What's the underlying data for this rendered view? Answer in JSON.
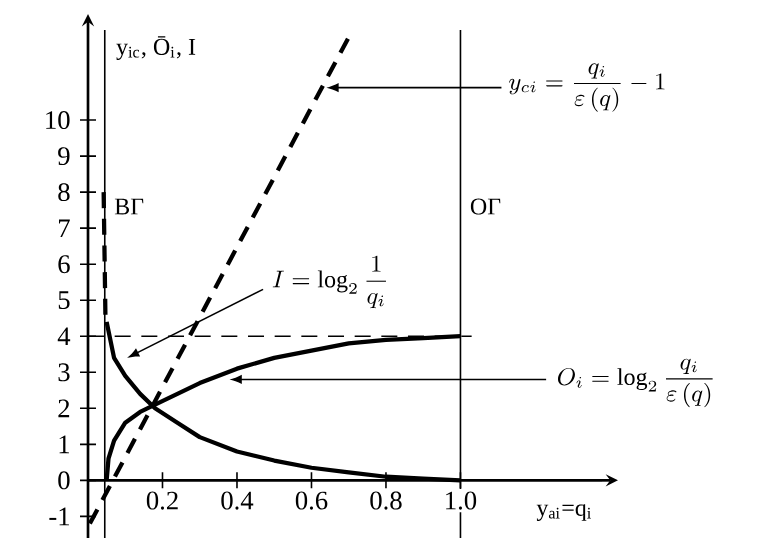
{
  "chart_data": {
    "type": "line",
    "xlabel": "y$_{ai}$=q$_{i}$",
    "ylabel": "y$_{ic}$, Ō$_{i}$, I",
    "xlim": [
      0,
      1.38
    ],
    "ylim": [
      -1.6,
      12.5
    ],
    "xticks": [
      0.2,
      0.4,
      0.6,
      0.8,
      {
        "value": 1.0,
        "label": "1.0"
      }
    ],
    "yticks": [
      -1,
      0,
      1,
      2,
      3,
      4,
      5,
      6,
      7,
      8,
      9,
      10
    ],
    "grid": false,
    "marker": "none",
    "series": [
      {
        "color": "#000000",
        "line_style": "solid",
        "x": [
          0.05,
          0.07,
          0.1,
          0.14,
          0.18,
          0.24,
          0.3,
          0.4,
          0.5,
          0.6,
          0.7,
          0.8,
          0.9,
          1.0
        ],
        "values": [
          4.4,
          3.4,
          2.9,
          2.4,
          2.0,
          1.6,
          1.2,
          0.8,
          0.55,
          0.35,
          0.22,
          0.1,
          0.05,
          0.0
        ]
      },
      {
        "color": "#000000",
        "line_style": "solid",
        "x": [
          0.05,
          0.055,
          0.07,
          0.1,
          0.14,
          0.18,
          0.24,
          0.3,
          0.4,
          0.5,
          0.6,
          0.7,
          0.8,
          0.9,
          1.0
        ],
        "values": [
          0.0,
          0.6,
          1.1,
          1.6,
          1.9,
          2.1,
          2.4,
          2.7,
          3.1,
          3.4,
          3.6,
          3.8,
          3.9,
          3.95,
          4.0
        ]
      },
      {
        "color": "#000000",
        "line_style": "dashed",
        "x": [
          0.005,
          0.7
        ],
        "values": [
          -1.2,
          12.3
        ]
      },
      {
        "color": "#000000",
        "line_style": "dashed",
        "x": [
          0.042,
          0.047
        ],
        "values": [
          8.0,
          4.4
        ]
      }
    ],
    "ref_lines": [
      {
        "axis": "x",
        "value": 0.045,
        "label": "ВГ",
        "color": "#000000",
        "line_style": "solid"
      },
      {
        "axis": "x",
        "value": 1.0,
        "label": "ОГ",
        "color": "#000000",
        "line_style": "solid"
      },
      {
        "axis": "y",
        "value": 4,
        "color": "#000000",
        "line_style": "dashed"
      }
    ],
    "annotations": [
      {
        "text": "y_{ci} = \\frac{q_i}{\\varepsilon\\,(q)} - 1",
        "x": 0.64,
        "y": 10.9
      },
      {
        "text": "I = \\log_2 \\frac{1}{q_i}",
        "x": 0.105,
        "y": 3.4
      },
      {
        "text": "O_i = \\log_2 \\frac{q_i}{\\varepsilon\\,(q)}",
        "x": 0.38,
        "y": 2.8
      }
    ]
  }
}
